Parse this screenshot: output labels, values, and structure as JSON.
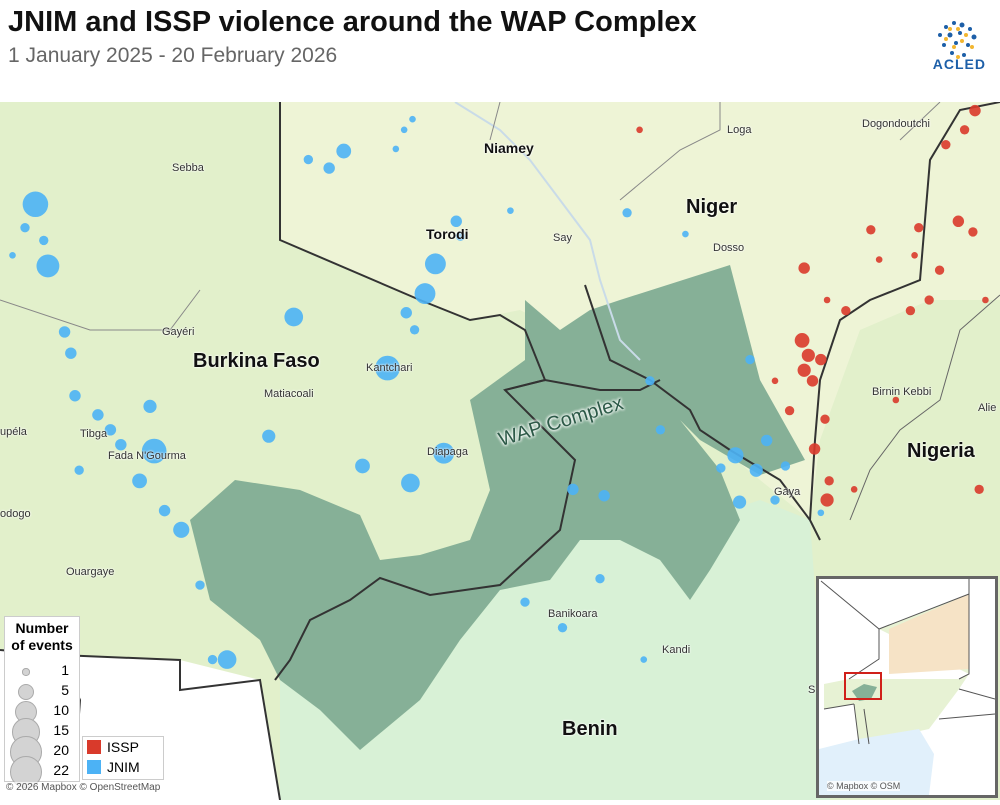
{
  "header": {
    "title": "JNIM and ISSP violence around the WAP Complex",
    "subtitle": "1 January 2025 - 20 February 2026",
    "logo_text": "ACLED"
  },
  "colors": {
    "ISSP": "#d93a2b",
    "JNIM": "#4cb2f5",
    "wap": "#86b097",
    "background": "#e2f0cb",
    "niger": "#eef4d6",
    "benin": "#d8f1d6",
    "border": "#333333"
  },
  "labels": {
    "countries": [
      "Niger",
      "Burkina Faso",
      "Nigeria",
      "Benin"
    ],
    "cities": [
      "Niamey",
      "Torodi"
    ],
    "towns": [
      "Sebba",
      "Say",
      "Dosso",
      "Loga",
      "Dogondoutchi",
      "Gayéri",
      "Kantchari",
      "Matiacoali",
      "Tibga",
      "Fada N'Gourma",
      "Diapaga",
      "Birnin Kebbi",
      "Alie",
      "Gaya",
      "Kandi",
      "Banikoara",
      "Ouargaye",
      "odogo",
      "upéla",
      "S"
    ],
    "wap": "WAP Complex"
  },
  "legend": {
    "size_title_1": "Number",
    "size_title_2": "of events",
    "sizes": [
      1,
      5,
      10,
      15,
      20,
      22
    ],
    "groups": [
      {
        "name": "ISSP",
        "color": "#d93a2b"
      },
      {
        "name": "JNIM",
        "color": "#4cb2f5"
      }
    ]
  },
  "attribution": "© 2026 Mapbox © OpenStreetMap",
  "inset": {
    "attribution": "© Mapbox © OSM"
  },
  "events": {
    "JNIM": [
      [
        -0.23,
        13.41,
        15
      ],
      [
        -0.17,
        13.12,
        12
      ],
      [
        -0.19,
        13.24,
        2
      ],
      [
        1.25,
        13.66,
        5
      ],
      [
        1.18,
        13.58,
        3
      ],
      [
        1.64,
        12.99,
        10
      ],
      [
        1.69,
        13.13,
        10
      ],
      [
        1.01,
        12.88,
        8
      ],
      [
        1.46,
        12.64,
        14
      ],
      [
        1.73,
        12.24,
        10
      ],
      [
        1.57,
        12.1,
        8
      ],
      [
        1.34,
        12.18,
        5
      ],
      [
        0.34,
        12.25,
        14
      ],
      [
        0.27,
        12.11,
        5
      ],
      [
        0.47,
        11.88,
        6
      ],
      [
        0.89,
        12.32,
        4
      ],
      [
        0.32,
        12.46,
        4
      ],
      [
        0.69,
        11.27,
        8
      ],
      [
        2.35,
        12.07,
        3
      ],
      [
        3.13,
        12.23,
        6
      ],
      [
        3.23,
        12.16,
        4
      ],
      [
        3.15,
        12.01,
        4
      ],
      [
        3.28,
        12.3,
        3
      ],
      [
        2.5,
        12.04,
        3
      ],
      [
        1.79,
        13.33,
        3
      ],
      [
        1.81,
        13.26,
        2
      ],
      [
        2.61,
        13.37,
        2
      ],
      [
        -0.06,
        12.71,
        3
      ],
      [
        -0.09,
        12.81,
        3
      ],
      [
        0.56,
        11.62,
        2
      ],
      [
        2.48,
        11.65,
        2
      ],
      [
        2.12,
        11.54,
        2
      ],
      [
        2.3,
        11.42,
        2
      ],
      [
        2.69,
        11.27,
        1
      ],
      [
        2.77,
        12.35,
        2
      ],
      [
        3.06,
        12.17,
        2
      ],
      [
        3.54,
        11.96,
        1
      ],
      [
        0.07,
        12.42,
        3
      ],
      [
        0.13,
        12.35,
        3
      ],
      [
        -0.02,
        12.16,
        2
      ],
      [
        0.39,
        11.97,
        3
      ],
      [
        1.55,
        12.9,
        3
      ],
      [
        1.59,
        12.82,
        2
      ],
      [
        1.08,
        13.62,
        2
      ],
      [
        1.54,
        13.76,
        1
      ],
      [
        1.58,
        13.81,
        1
      ],
      [
        1.5,
        13.67,
        1
      ],
      [
        2.05,
        13.38,
        1
      ],
      [
        2.72,
        12.58,
        2
      ],
      [
        -0.28,
        13.3,
        2
      ],
      [
        -0.34,
        13.17,
        1
      ],
      [
        -0.04,
        12.51,
        3
      ],
      [
        0.18,
        12.28,
        3
      ],
      [
        0.62,
        11.27,
        2
      ],
      [
        2.89,
        13.27,
        1
      ],
      [
        3.2,
        12.68,
        2
      ],
      [
        3.37,
        12.18,
        2
      ],
      [
        3.32,
        12.02,
        2
      ]
    ],
    "ISSP": [
      [
        3.45,
        12.77,
        5
      ],
      [
        3.48,
        12.7,
        4
      ],
      [
        3.46,
        12.63,
        4
      ],
      [
        3.5,
        12.58,
        3
      ],
      [
        3.54,
        12.68,
        3
      ],
      [
        3.51,
        12.26,
        3
      ],
      [
        3.57,
        12.02,
        4
      ],
      [
        3.58,
        12.11,
        2
      ],
      [
        3.56,
        12.4,
        2
      ],
      [
        4.14,
        13.69,
        2
      ],
      [
        4.23,
        13.76,
        2
      ],
      [
        4.28,
        13.85,
        3
      ],
      [
        4.2,
        13.33,
        3
      ],
      [
        4.01,
        13.3,
        2
      ],
      [
        4.06,
        12.96,
        2
      ],
      [
        3.97,
        12.91,
        2
      ],
      [
        4.11,
        13.1,
        2
      ],
      [
        3.82,
        13.15,
        1
      ],
      [
        3.66,
        12.91,
        2
      ],
      [
        3.57,
        12.96,
        1
      ],
      [
        3.39,
        12.44,
        2
      ],
      [
        3.32,
        12.58,
        1
      ],
      [
        4.27,
        13.28,
        2
      ],
      [
        4.3,
        12.07,
        2
      ],
      [
        3.7,
        12.07,
        1
      ],
      [
        3.9,
        12.49,
        1
      ],
      [
        3.78,
        13.29,
        2
      ],
      [
        3.46,
        13.11,
        3
      ],
      [
        2.67,
        13.76,
        1
      ],
      [
        3.99,
        13.17,
        1
      ],
      [
        4.33,
        12.96,
        1
      ]
    ]
  }
}
